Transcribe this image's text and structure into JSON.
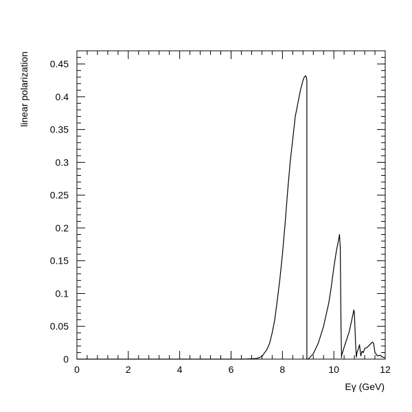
{
  "chart_data": {
    "type": "line",
    "title": "",
    "xlabel": "Eγ (GeV)",
    "ylabel": "linear polarization",
    "xlim": [
      0,
      12
    ],
    "ylim": [
      0,
      0.47
    ],
    "grid": false,
    "legend": "none",
    "x_ticks": [
      {
        "value": 0,
        "label": "0"
      },
      {
        "value": 2,
        "label": "2"
      },
      {
        "value": 4,
        "label": "4"
      },
      {
        "value": 6,
        "label": "6"
      },
      {
        "value": 8,
        "label": "8"
      },
      {
        "value": 10,
        "label": "10"
      },
      {
        "value": 12,
        "label": "12"
      }
    ],
    "y_ticks": [
      {
        "value": 0,
        "label": "0"
      },
      {
        "value": 0.05,
        "label": "0.05"
      },
      {
        "value": 0.1,
        "label": "0.1"
      },
      {
        "value": 0.15,
        "label": "0.15"
      },
      {
        "value": 0.2,
        "label": "0.2"
      },
      {
        "value": 0.25,
        "label": "0.25"
      },
      {
        "value": 0.3,
        "label": "0.3"
      },
      {
        "value": 0.35,
        "label": "0.35"
      },
      {
        "value": 0.4,
        "label": "0.4"
      },
      {
        "value": 0.45,
        "label": "0.45"
      }
    ],
    "series": [
      {
        "color": "#000000",
        "x": [
          0,
          6.0,
          6.5,
          7.0,
          7.2,
          7.4,
          7.5,
          7.6,
          7.7,
          7.8,
          7.9,
          8.0,
          8.1,
          8.2,
          8.3,
          8.4,
          8.5,
          8.6,
          8.7,
          8.8,
          8.85,
          8.9,
          8.93,
          8.95,
          8.95,
          9.0,
          9.2,
          9.4,
          9.6,
          9.8,
          9.9,
          10.0,
          10.1,
          10.2,
          10.22,
          10.25,
          10.28,
          10.3,
          10.3,
          10.4,
          10.5,
          10.6,
          10.7,
          10.78,
          10.8,
          10.85,
          10.88,
          10.9,
          10.95,
          11.0,
          11.05,
          11.1,
          11.15,
          11.2,
          11.3,
          11.4,
          11.5,
          11.55,
          11.6,
          11.7,
          11.8,
          11.9,
          12.0
        ],
        "y": [
          0,
          0,
          0,
          0.001,
          0.004,
          0.015,
          0.024,
          0.04,
          0.06,
          0.09,
          0.122,
          0.16,
          0.205,
          0.255,
          0.3,
          0.335,
          0.37,
          0.39,
          0.41,
          0.425,
          0.43,
          0.432,
          0.43,
          0.425,
          0,
          0,
          0.008,
          0.025,
          0.05,
          0.085,
          0.11,
          0.14,
          0.165,
          0.185,
          0.19,
          0.17,
          0.05,
          0.002,
          0.005,
          0.018,
          0.03,
          0.042,
          0.06,
          0.075,
          0.07,
          0.02,
          0.003,
          0.01,
          0.015,
          0.022,
          0.005,
          0.012,
          0.01,
          0.016,
          0.018,
          0.022,
          0.026,
          0.024,
          0.01,
          0.005,
          0.006,
          0.003,
          0.002
        ]
      }
    ]
  }
}
